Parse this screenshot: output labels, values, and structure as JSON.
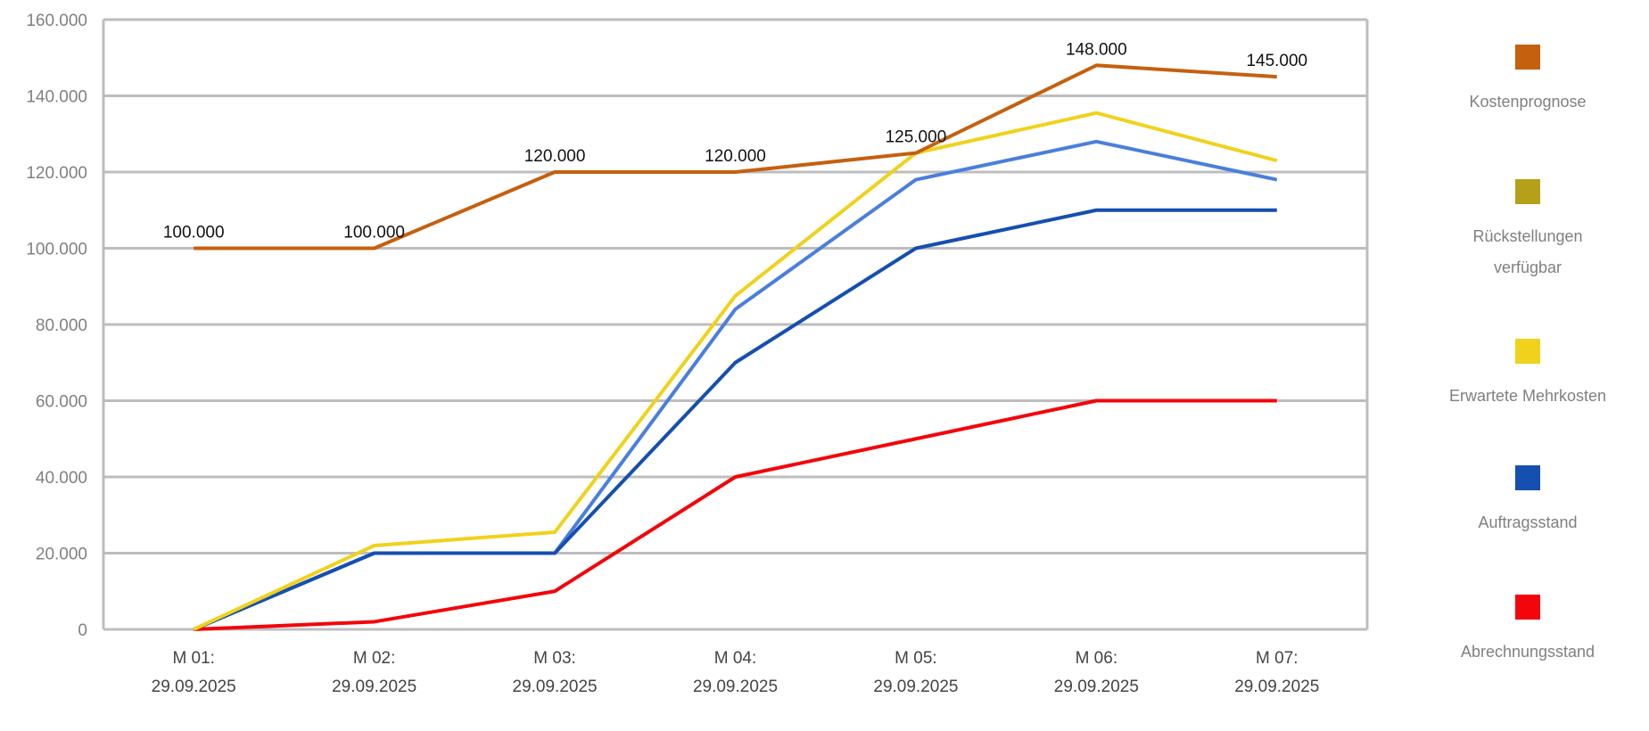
{
  "chart_data": {
    "type": "line",
    "title": "",
    "xlabel": "",
    "ylabel": "",
    "ylim": [
      0,
      160000
    ],
    "yticks": [
      0,
      20000,
      40000,
      60000,
      80000,
      100000,
      120000,
      140000,
      160000
    ],
    "ytick_labels": [
      "0",
      "20.000",
      "40.000",
      "60.000",
      "80.000",
      "100.000",
      "120.000",
      "140.000",
      "160.000"
    ],
    "grid": true,
    "legend_position": "right",
    "categories": [
      [
        "M 01:",
        "29.09.2025"
      ],
      [
        "M 02:",
        "29.09.2025"
      ],
      [
        "M 03:",
        "29.09.2025"
      ],
      [
        "M 04:",
        "29.09.2025"
      ],
      [
        "M 05:",
        "29.09.2025"
      ],
      [
        "M 06:",
        "29.09.2025"
      ],
      [
        "M 07:",
        "29.09.2025"
      ]
    ],
    "series": [
      {
        "name": [
          "Rückstellungen",
          "verfügbar"
        ],
        "line_color": "#4a7fdc",
        "legend_color": "#b5a01a",
        "values": [
          0,
          20000,
          20000,
          84000,
          118000,
          128000,
          118000
        ],
        "labels": []
      },
      {
        "name": [
          "Auftragsstand"
        ],
        "line_color": "#154fb0",
        "legend_color": "#154fb0",
        "values": [
          0,
          20000,
          20000,
          70000,
          100000,
          110000,
          110000
        ],
        "labels": []
      },
      {
        "name": [
          "Abrechnungsstand"
        ],
        "line_color": "#f2060b",
        "legend_color": "#f2060b",
        "values": [
          0,
          2000,
          10000,
          40000,
          50000,
          60000,
          60000
        ],
        "labels": []
      },
      {
        "name": [
          "Erwartete Mehrkosten"
        ],
        "line_color": "#f0d21c",
        "legend_color": "#f0d21c",
        "values": [
          0,
          22000,
          25500,
          87500,
          125000,
          135500,
          123000
        ],
        "labels": []
      },
      {
        "name": [
          "Kostenprognose"
        ],
        "line_color": "#c5600f",
        "legend_color": "#c5600f",
        "values": [
          100000,
          100000,
          120000,
          120000,
          125000,
          148000,
          145000
        ],
        "labels": [
          "100.000",
          "100.000",
          "120.000",
          "120.000",
          "125.000",
          "148.000",
          "145.000"
        ]
      }
    ],
    "legend_order": [
      4,
      0,
      3,
      1,
      2
    ]
  }
}
